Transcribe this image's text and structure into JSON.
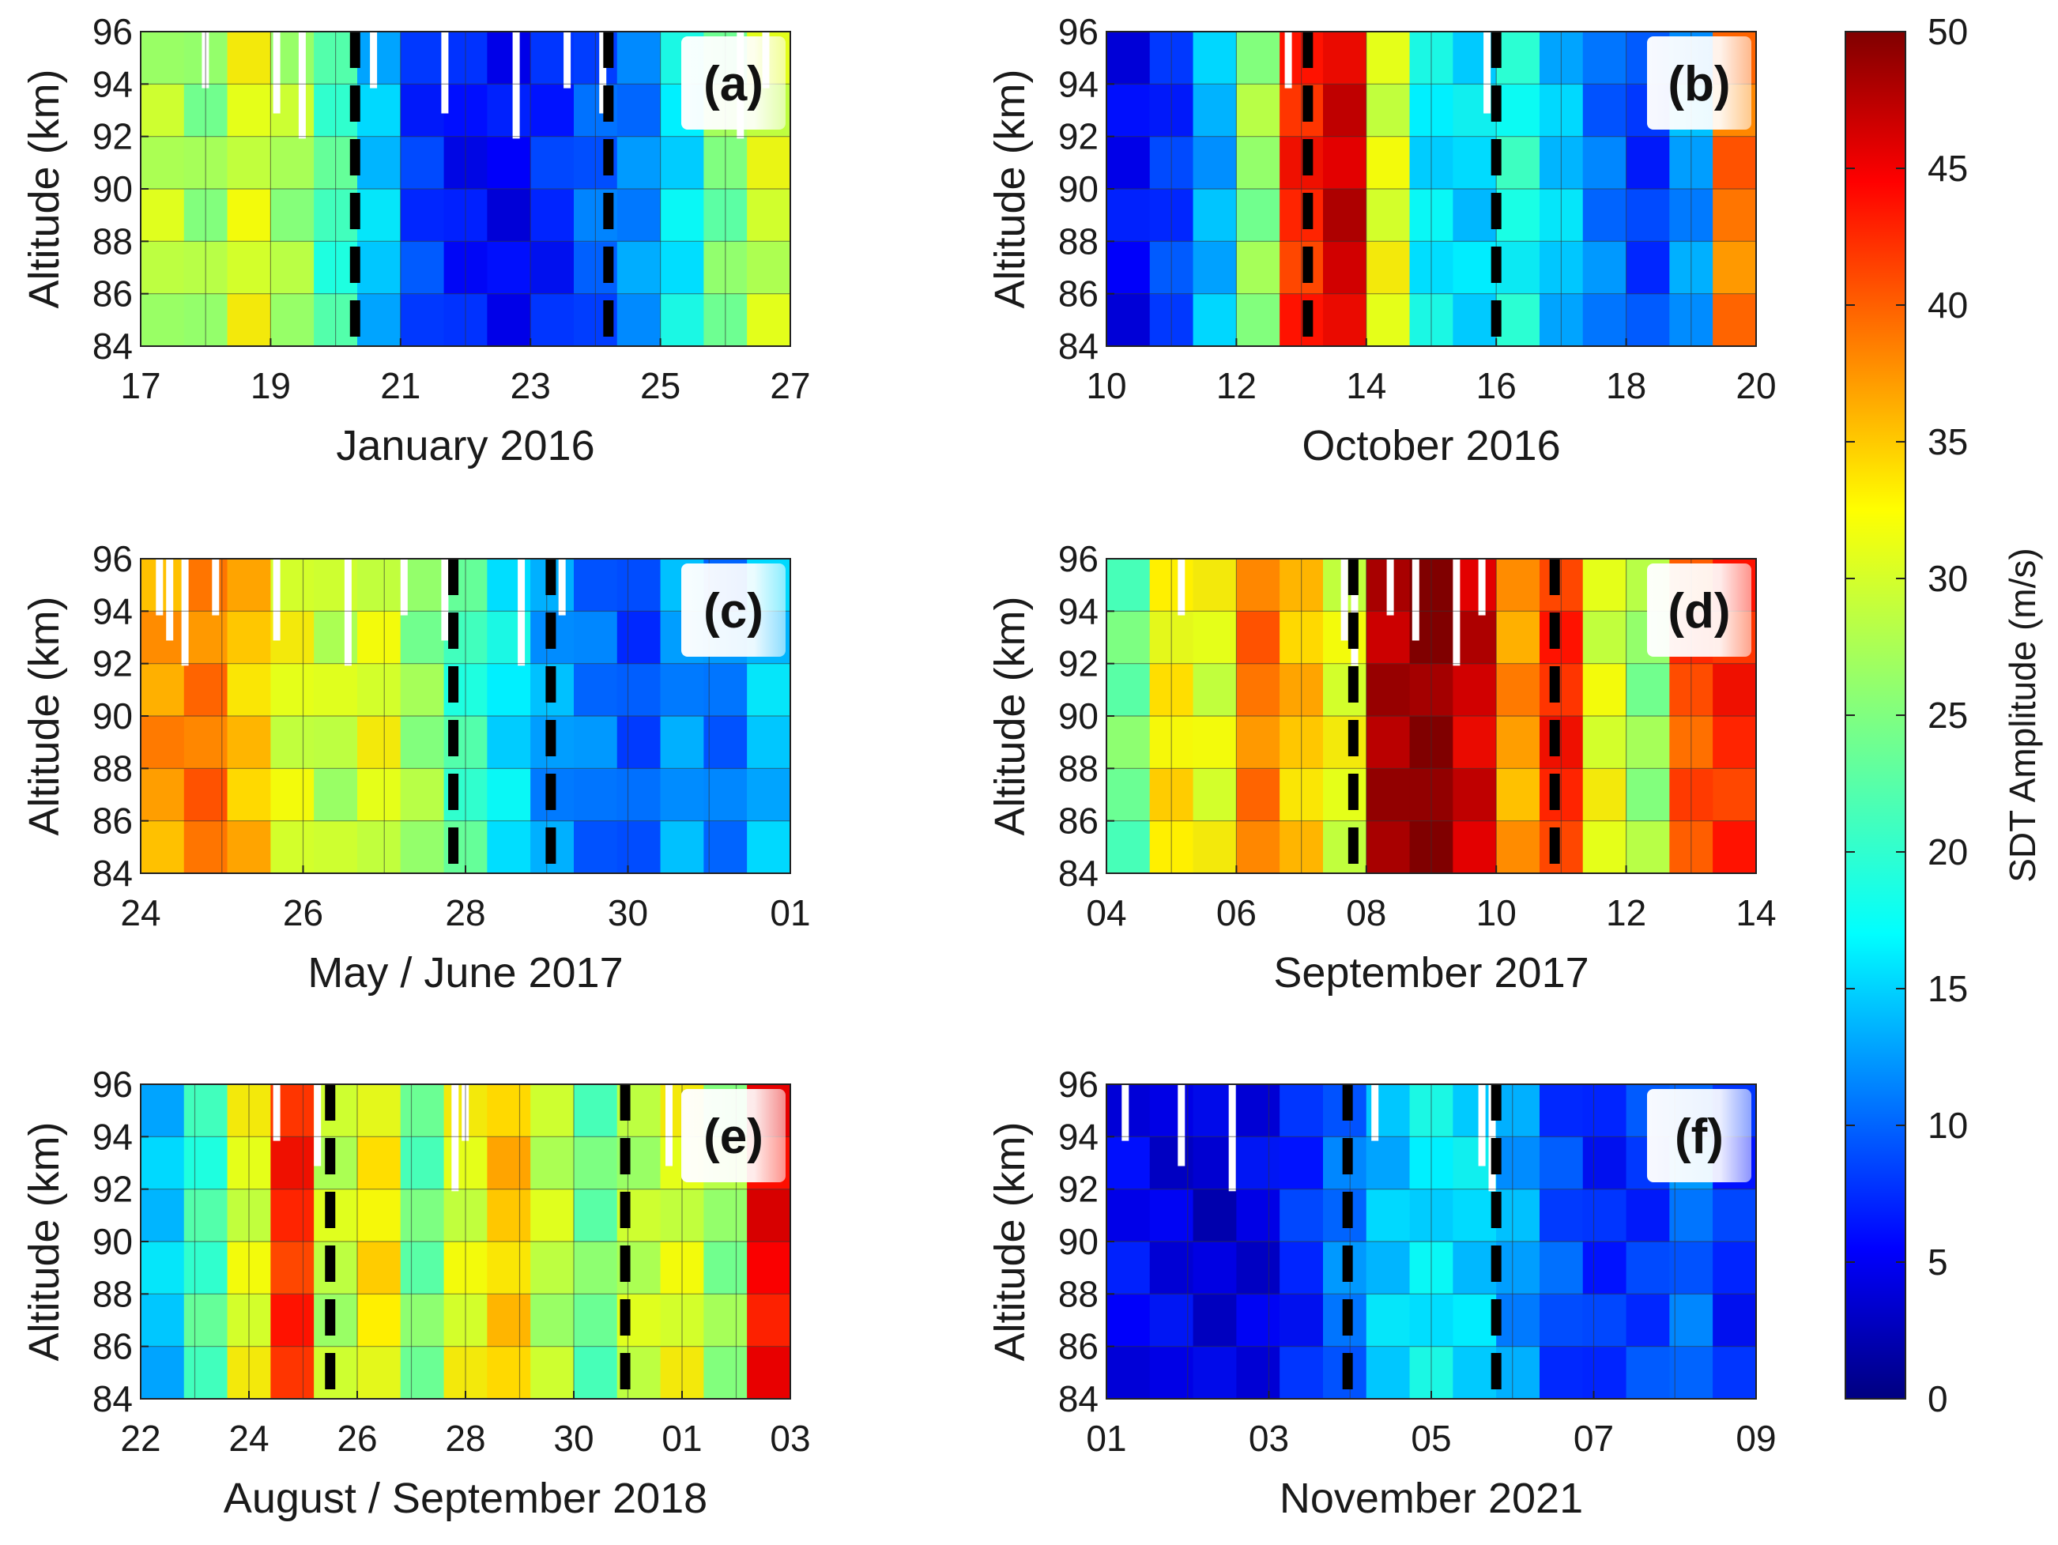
{
  "chart_data": {
    "type": "heatmap",
    "colorbar": {
      "title": "SDT Amplitude (m/s)",
      "min": 0,
      "max": 50,
      "ticks": [
        "0",
        "5",
        "10",
        "15",
        "20",
        "25",
        "30",
        "35",
        "40",
        "45",
        "50"
      ]
    },
    "panels": [
      {
        "id": "a",
        "tag": "(a)",
        "xlabel": "January 2016",
        "ylabel": "Altitude (km)",
        "xticks": [
          "17",
          "19",
          "21",
          "23",
          "25",
          "27"
        ],
        "yticks": [
          "84",
          "86",
          "88",
          "90",
          "92",
          "94",
          "96"
        ],
        "ylim": [
          84,
          96
        ],
        "dashed_lines": [
          20.3,
          24.2
        ],
        "amplitude_profile": [
          28,
          26,
          30,
          27,
          22,
          16,
          9,
          7,
          6,
          8,
          11,
          13,
          18,
          25,
          29
        ],
        "missing_columns": [
          1.2,
          2.6,
          3.1,
          4.5,
          5.9,
          7.3,
          8.3,
          9.0,
          11.7,
          12.2
        ]
      },
      {
        "id": "b",
        "tag": "(b)",
        "xlabel": "October 2016",
        "ylabel": "Altitude (km)",
        "xticks": [
          "10",
          "12",
          "14",
          "16",
          "18",
          "20"
        ],
        "yticks": [
          "84",
          "86",
          "88",
          "90",
          "92",
          "94",
          "96"
        ],
        "ylim": [
          84,
          96
        ],
        "dashed_lines": [
          13.1,
          16.0
        ],
        "amplitude_profile": [
          6,
          9,
          15,
          26,
          42,
          46,
          30,
          18,
          17,
          20,
          16,
          12,
          9,
          14,
          38
        ],
        "missing_columns": [
          3.5,
          7.4
        ]
      },
      {
        "id": "c",
        "tag": "(c)",
        "xlabel": "May / June 2017",
        "ylabel": "Altitude (km)",
        "xticks": [
          "24",
          "26",
          "28",
          "30",
          "01"
        ],
        "yticks": [
          "84",
          "86",
          "88",
          "90",
          "92",
          "94",
          "96"
        ],
        "ylim": [
          84,
          96
        ],
        "dashed_lines": [
          27.85,
          29.05
        ],
        "amplitude_profile": [
          36,
          38,
          34,
          30,
          28,
          30,
          26,
          22,
          18,
          14,
          12,
          10,
          14,
          12,
          16
        ],
        "missing_columns": [
          0.3,
          0.5,
          0.8,
          1.4,
          2.6,
          4.0,
          5.1,
          5.9,
          7.4,
          8.2
        ]
      },
      {
        "id": "d",
        "tag": "(d)",
        "xlabel": "September 2017",
        "ylabel": "Altitude (km)",
        "xticks": [
          "04",
          "06",
          "08",
          "10",
          "12",
          "14"
        ],
        "yticks": [
          "84",
          "86",
          "88",
          "90",
          "92",
          "94",
          "96"
        ],
        "ylim": [
          84,
          96
        ],
        "dashed_lines": [
          7.8,
          10.9
        ],
        "amplitude_profile": [
          24,
          32,
          30,
          38,
          34,
          30,
          48,
          50,
          46,
          36,
          42,
          30,
          26,
          40,
          42
        ],
        "missing_columns": [
          1.4,
          4.6,
          4.8,
          5.5,
          6.0,
          6.8,
          7.3
        ]
      },
      {
        "id": "e",
        "tag": "(e)",
        "xlabel": "August / September 2018",
        "ylabel": "Altitude (km)",
        "xticks": [
          "22",
          "24",
          "26",
          "28",
          "30",
          "01",
          "03"
        ],
        "yticks": [
          "84",
          "86",
          "88",
          "90",
          "92",
          "94",
          "96"
        ],
        "ylim": [
          84,
          96
        ],
        "dashed_lines": [
          25.5,
          30.95
        ],
        "amplitude_profile": [
          16,
          22,
          30,
          42,
          28,
          32,
          24,
          30,
          34,
          28,
          24,
          28,
          30,
          26,
          44
        ],
        "missing_columns": [
          2.6,
          3.4,
          6.1,
          6.3,
          10.3
        ]
      },
      {
        "id": "f",
        "tag": "(f)",
        "xlabel": "November 2021",
        "ylabel": "Altitude (km)",
        "xticks": [
          "01",
          "03",
          "05",
          "07",
          "09"
        ],
        "yticks": [
          "84",
          "86",
          "88",
          "90",
          "92",
          "94",
          "96"
        ],
        "ylim": [
          84,
          96
        ],
        "dashed_lines": [
          3.97,
          5.8
        ],
        "amplitude_profile": [
          6,
          5,
          4,
          5,
          8,
          12,
          16,
          18,
          17,
          14,
          10,
          8,
          9,
          12,
          8
        ],
        "missing_columns": [
          0.3,
          1.4,
          2.4,
          5.2,
          7.3,
          7.5
        ]
      }
    ]
  }
}
